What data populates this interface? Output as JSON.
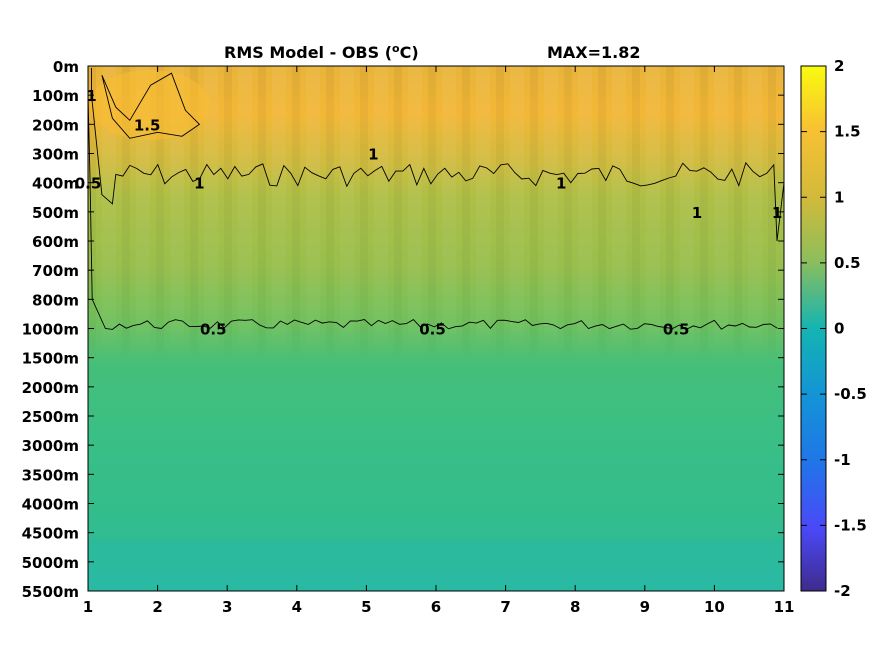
{
  "chart_data": {
    "type": "heatmap",
    "title": "RMS Model - OBS (°C)",
    "title_parts": {
      "base": "RMS Model - OBS (",
      "sup": "o",
      "rest": "C)"
    },
    "max_label": "MAX=1.82",
    "x_ticks": [
      "1",
      "2",
      "3",
      "4",
      "5",
      "6",
      "7",
      "8",
      "9",
      "10",
      "11"
    ],
    "xlim": [
      1,
      11
    ],
    "y_ticks": [
      "0m",
      "100m",
      "200m",
      "300m",
      "400m",
      "500m",
      "600m",
      "700m",
      "800m",
      "1000m",
      "1500m",
      "2000m",
      "2500m",
      "3000m",
      "3500m",
      "4000m",
      "4500m",
      "5000m",
      "5500m"
    ],
    "colorbar_ticks": [
      "2",
      "1.5",
      "1",
      "0.5",
      "0",
      "-0.5",
      "-1",
      "-1.5",
      "-2"
    ],
    "clim": [
      -2,
      2
    ],
    "colormap": "parula",
    "contour_levels": [
      0.5,
      1,
      1.5
    ],
    "contour_labels": [
      {
        "text": "1",
        "x": 1.05,
        "depth": "100m"
      },
      {
        "text": "1.5",
        "x": 1.85,
        "depth": "200m"
      },
      {
        "text": "0.5",
        "x": 1.0,
        "depth": "400m"
      },
      {
        "text": "1",
        "x": 2.6,
        "depth": "400m"
      },
      {
        "text": "1",
        "x": 5.1,
        "depth": "300m"
      },
      {
        "text": "1",
        "x": 7.8,
        "depth": "400m"
      },
      {
        "text": "1",
        "x": 9.75,
        "depth": "500m"
      },
      {
        "text": "1",
        "x": 10.9,
        "depth": "500m"
      },
      {
        "text": "0.5",
        "x": 2.8,
        "depth": "1000m"
      },
      {
        "text": "0.5",
        "x": 5.95,
        "depth": "1000m"
      },
      {
        "text": "0.5",
        "x": 9.45,
        "depth": "1000m"
      }
    ],
    "depth_profile": {
      "depths": [
        "0m",
        "100m",
        "200m",
        "300m",
        "400m",
        "500m",
        "600m",
        "700m",
        "800m",
        "1000m",
        "1500m",
        "2000m",
        "2500m",
        "3000m",
        "3500m",
        "4000m",
        "4500m",
        "5000m",
        "5500m"
      ],
      "values": [
        1.3,
        1.4,
        1.35,
        1.2,
        1.0,
        0.9,
        0.85,
        0.8,
        0.7,
        0.5,
        0.4,
        0.38,
        0.35,
        0.34,
        0.32,
        0.3,
        0.28,
        0.25,
        0.2
      ]
    },
    "grid": false
  }
}
